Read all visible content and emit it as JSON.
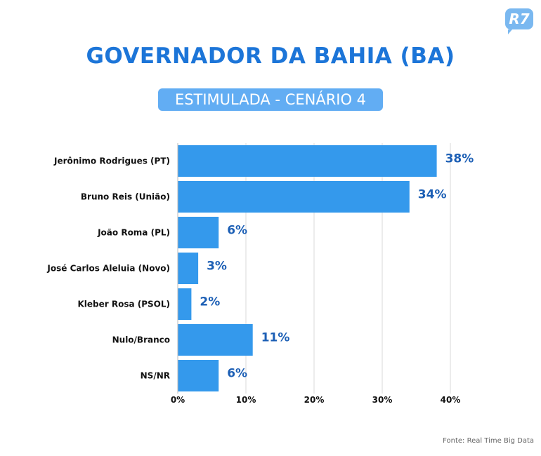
{
  "header": {
    "logo": "R7",
    "title": "GOVERNADOR DA BAHIA (BA)",
    "subtitle": "ESTIMULADA - CENÁRIO 4"
  },
  "footer": {
    "source": "Fonte: Real Time Big Data"
  },
  "chart_data": {
    "type": "bar",
    "orientation": "horizontal",
    "categories": [
      "Jerônimo Rodrigues (PT)",
      "Bruno Reis (União)",
      "João Roma (PL)",
      "José Carlos Aleluia (Novo)",
      "Kleber Rosa (PSOL)",
      "Nulo/Branco",
      "NS/NR"
    ],
    "values": [
      38,
      34,
      6,
      3,
      2,
      11,
      6
    ],
    "data_labels": [
      "38%",
      "34%",
      "6%",
      "3%",
      "2%",
      "11%",
      "6%"
    ],
    "xlim": [
      0,
      40
    ],
    "xticks": [
      0,
      10,
      20,
      30,
      40
    ],
    "xtick_labels": [
      "0%",
      "10%",
      "20%",
      "30%",
      "40%"
    ],
    "grid": true,
    "colors": {
      "bar": "#3499ec",
      "label": "#1c5fb5"
    }
  }
}
